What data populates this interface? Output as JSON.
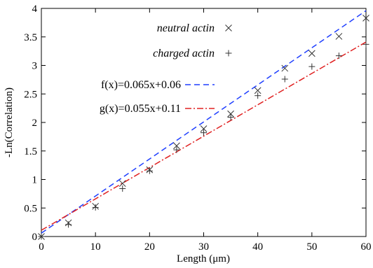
{
  "chart_data": {
    "type": "scatter",
    "xlabel": "Length (μm)",
    "ylabel": "-Ln(Correlation)",
    "xlim": [
      0,
      60
    ],
    "ylim": [
      0,
      4
    ],
    "xticks": [
      "0",
      "10",
      "20",
      "30",
      "40",
      "50",
      "60"
    ],
    "yticks": [
      "0",
      "0.5",
      "1",
      "1.5",
      "2",
      "2.5",
      "3",
      "3.5",
      "4"
    ],
    "grid": false,
    "legend_position": "top-center",
    "series": [
      {
        "name": "neutral actin",
        "marker": "x",
        "color": "#333333",
        "x": [
          0,
          5,
          10,
          15,
          20,
          25,
          30,
          35,
          40,
          45,
          50,
          55,
          60
        ],
        "y": [
          0.0,
          0.24,
          0.53,
          0.93,
          1.17,
          1.59,
          1.89,
          2.15,
          2.56,
          2.95,
          3.21,
          3.51,
          3.83
        ]
      },
      {
        "name": "charged actin",
        "marker": "+",
        "color": "#333333",
        "x": [
          0,
          5,
          10,
          15,
          20,
          25,
          30,
          35,
          40,
          45,
          50,
          55,
          60
        ],
        "y": [
          0.0,
          0.21,
          0.51,
          0.84,
          1.15,
          1.52,
          1.82,
          2.09,
          2.47,
          2.76,
          2.98,
          3.17,
          3.37
        ]
      }
    ],
    "fits": [
      {
        "label": "f(x)=0.065x+0.06",
        "slope": 0.065,
        "intercept": 0.06,
        "color": "#1f3fff",
        "dash": "8,5"
      },
      {
        "label": "g(x)=0.055x+0.11",
        "slope": 0.055,
        "intercept": 0.11,
        "color": "#e02020",
        "dash": "9,3,2,3"
      }
    ]
  }
}
